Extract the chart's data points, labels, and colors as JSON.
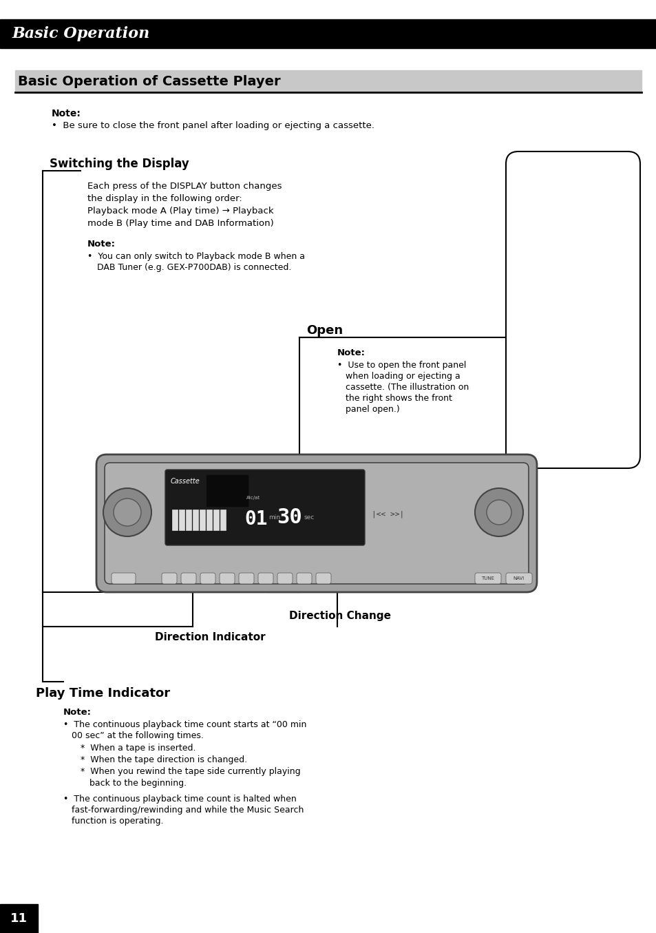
{
  "page_bg": "#ffffff",
  "header_bg": "#000000",
  "header_text": "Basic Operation",
  "header_text_color": "#ffffff",
  "section_title_bg": "#c8c8c8",
  "section_title": "Basic Operation of Cassette Player",
  "section_title_color": "#000000",
  "page_number": "11",
  "page_num_bg": "#000000",
  "page_num_color": "#ffffff",
  "note_label": "Note:",
  "note1_bullet": "Be sure to close the front panel after loading or ejecting a cassette.",
  "switching_title": "Switching the Display",
  "switching_body_lines": [
    "Each press of the DISPLAY button changes",
    "the display in the following order:",
    "Playback mode A (Play time) → Playback",
    "mode B (Play time and DAB Information)"
  ],
  "switching_note_label": "Note:",
  "switching_note_bullet_lines": [
    "You can only switch to Playback mode B when a",
    "DAB Tuner (e.g. GEX-P700DAB) is connected."
  ],
  "open_title": "Open",
  "open_note_label": "Note:",
  "open_note_bullet_lines": [
    "Use to open the front panel",
    "when loading or ejecting a",
    "cassette. (The illustration on",
    "the right shows the front",
    "panel open.)"
  ],
  "direction_indicator_label": "Direction Indicator",
  "direction_change_label": "Direction Change",
  "play_time_title": "Play Time Indicator",
  "play_time_note_label": "Note:",
  "play_time_bullet1_lines": [
    "The continuous playback time count starts at “00 min",
    "00 sec” at the following times."
  ],
  "play_time_sub_bullets": [
    "When a tape is inserted.",
    "When the tape direction is changed.",
    "When you rewind the tape side currently playing"
  ],
  "play_time_sub_bullet3_line2": "back to the beginning.",
  "play_time_bullet2_lines": [
    "The continuous playback time count is halted when",
    "fast-forwarding/rewinding and while the Music Search",
    "function is operating."
  ]
}
